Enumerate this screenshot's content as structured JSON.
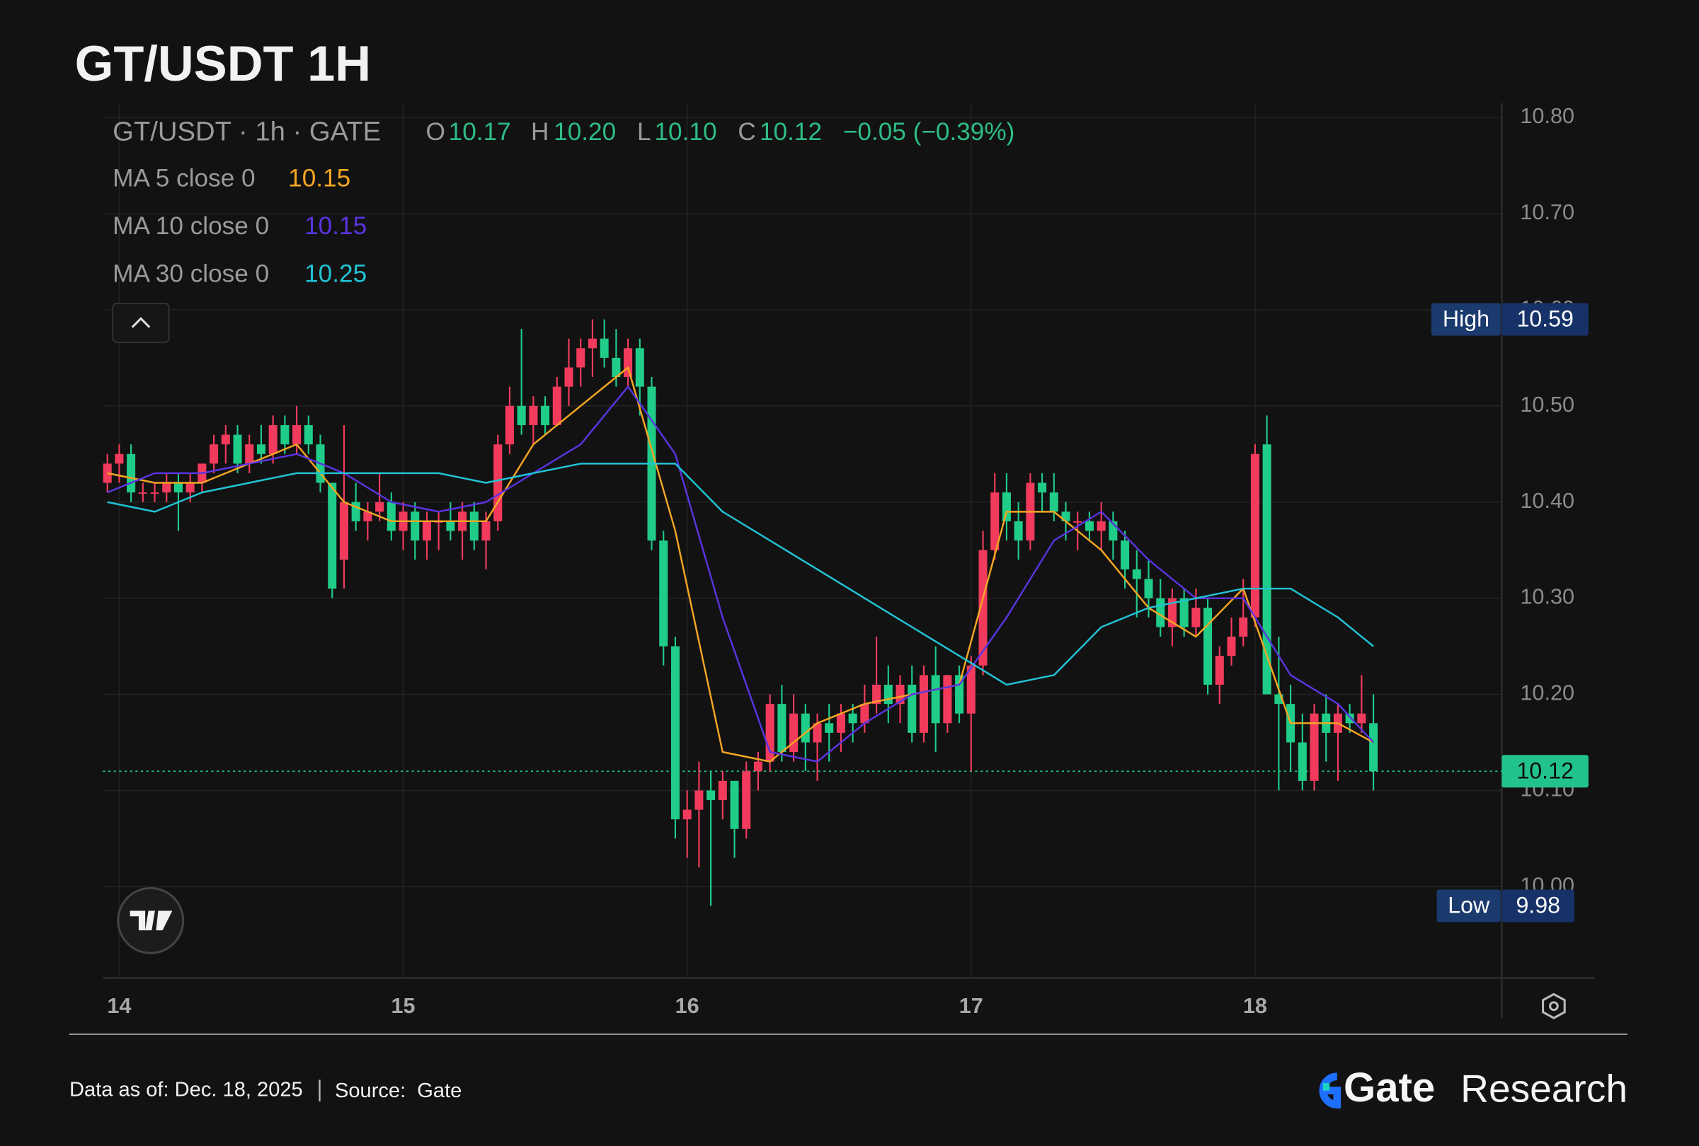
{
  "chart_data": {
    "type": "candlestick",
    "title": "GT/USDT 1H",
    "symbol": "GT/USDT · 1h · GATE",
    "ohlc_legend": [
      {
        "key": "O",
        "value": "10.17"
      },
      {
        "key": "H",
        "value": "10.20"
      },
      {
        "key": "L",
        "value": "10.10"
      },
      {
        "key": "C",
        "value": "10.12"
      }
    ],
    "change": "−0.05 (−0.39%)",
    "up_color": "#f23b5c",
    "down_color": "#1fcc88",
    "x": [
      -1,
      0,
      1,
      2,
      3,
      4,
      5,
      6,
      7,
      8,
      9,
      10,
      11,
      12,
      13,
      14,
      15,
      16,
      17,
      18,
      19,
      20,
      21,
      22,
      23,
      24,
      25,
      26,
      27,
      28,
      29,
      30,
      31,
      32,
      33,
      34,
      35,
      36,
      37,
      38,
      39,
      40,
      41,
      42,
      43,
      44,
      45,
      46,
      47,
      48,
      49,
      50,
      51,
      52,
      53,
      54,
      55,
      56,
      57,
      58,
      59,
      60,
      61,
      62,
      63,
      64,
      65,
      66,
      67,
      68,
      69,
      70,
      71,
      72,
      73,
      74,
      75,
      76,
      77,
      78,
      79,
      80,
      81,
      82,
      83,
      84,
      85,
      86,
      87,
      88,
      89,
      90,
      91,
      92,
      93,
      94,
      95,
      96,
      97,
      98,
      99,
      100,
      101,
      102,
      103,
      104,
      105,
      106
    ],
    "open": [
      10.42,
      10.44,
      10.45,
      10.41,
      10.41,
      10.41,
      10.42,
      10.41,
      10.42,
      10.44,
      10.46,
      10.47,
      10.44,
      10.46,
      10.45,
      10.48,
      10.46,
      10.48,
      10.46,
      10.42,
      10.34,
      10.4,
      10.38,
      10.39,
      10.4,
      10.37,
      10.39,
      10.36,
      10.38,
      10.38,
      10.37,
      10.39,
      10.36,
      10.38,
      10.46,
      10.5,
      10.48,
      10.5,
      10.48,
      10.52,
      10.54,
      10.56,
      10.57,
      10.55,
      10.53,
      10.56,
      10.52,
      10.36,
      10.25,
      10.07,
      10.08,
      10.1,
      10.09,
      10.11,
      10.06,
      10.12,
      10.13,
      10.19,
      10.14,
      10.18,
      10.15,
      10.17,
      10.16,
      10.18,
      10.17,
      10.19,
      10.21,
      10.19,
      10.21,
      10.16,
      10.22,
      10.17,
      10.22,
      10.18,
      10.23,
      10.35,
      10.41,
      10.38,
      10.36,
      10.42,
      10.41,
      10.39,
      10.38,
      10.38,
      10.37,
      10.38,
      10.36,
      10.33,
      10.32,
      10.3,
      10.27,
      10.3,
      10.27,
      10.29,
      10.21,
      10.24,
      10.26,
      10.28,
      10.46,
      10.2,
      10.19,
      10.15,
      10.11,
      10.18,
      10.16,
      10.18,
      10.17,
      10.17
    ],
    "high": [
      10.45,
      10.46,
      10.46,
      10.42,
      10.42,
      10.43,
      10.43,
      10.43,
      10.44,
      10.47,
      10.48,
      10.48,
      10.47,
      10.48,
      10.49,
      10.49,
      10.5,
      10.49,
      10.47,
      10.42,
      10.48,
      10.42,
      10.4,
      10.43,
      10.41,
      10.4,
      10.4,
      10.39,
      10.39,
      10.4,
      10.4,
      10.4,
      10.39,
      10.47,
      10.52,
      10.58,
      10.51,
      10.51,
      10.53,
      10.57,
      10.57,
      10.59,
      10.59,
      10.58,
      10.57,
      10.57,
      10.53,
      10.37,
      10.26,
      10.1,
      10.13,
      10.12,
      10.12,
      10.11,
      10.13,
      10.14,
      10.2,
      10.21,
      10.2,
      10.19,
      10.18,
      10.19,
      10.19,
      10.19,
      10.21,
      10.26,
      10.23,
      10.22,
      10.23,
      10.23,
      10.25,
      10.22,
      10.23,
      10.24,
      10.37,
      10.43,
      10.43,
      10.4,
      10.43,
      10.43,
      10.43,
      10.4,
      10.39,
      10.39,
      10.4,
      10.39,
      10.37,
      10.35,
      10.34,
      10.32,
      10.31,
      10.31,
      10.31,
      10.3,
      10.25,
      10.28,
      10.32,
      10.46,
      10.49,
      10.26,
      10.21,
      10.18,
      10.19,
      10.2,
      10.19,
      10.19,
      10.22,
      10.2
    ],
    "low": [
      10.41,
      10.42,
      10.4,
      10.4,
      10.4,
      10.4,
      10.37,
      10.4,
      10.41,
      10.43,
      10.44,
      10.43,
      10.43,
      10.44,
      10.44,
      10.45,
      10.45,
      10.45,
      10.41,
      10.3,
      10.31,
      10.37,
      10.36,
      10.38,
      10.36,
      10.35,
      10.34,
      10.34,
      10.35,
      10.36,
      10.34,
      10.35,
      10.33,
      10.37,
      10.45,
      10.47,
      10.46,
      10.47,
      10.48,
      10.5,
      10.52,
      10.53,
      10.54,
      10.52,
      10.52,
      10.49,
      10.35,
      10.23,
      10.05,
      10.03,
      10.02,
      9.98,
      10.07,
      10.03,
      10.05,
      10.1,
      10.12,
      10.13,
      10.13,
      10.12,
      10.11,
      10.13,
      10.14,
      10.15,
      10.16,
      10.18,
      10.17,
      10.17,
      10.15,
      10.15,
      10.14,
      10.16,
      10.17,
      10.12,
      10.22,
      10.34,
      10.36,
      10.34,
      10.35,
      10.39,
      10.38,
      10.36,
      10.35,
      10.36,
      10.35,
      10.34,
      10.31,
      10.28,
      10.28,
      10.26,
      10.25,
      10.26,
      10.26,
      10.2,
      10.19,
      10.23,
      10.25,
      10.27,
      10.2,
      10.1,
      10.12,
      10.1,
      10.1,
      10.13,
      10.11,
      10.16,
      10.16,
      10.1
    ],
    "close": [
      10.44,
      10.45,
      10.41,
      10.41,
      10.41,
      10.42,
      10.41,
      10.42,
      10.44,
      10.46,
      10.47,
      10.44,
      10.46,
      10.45,
      10.48,
      10.46,
      10.48,
      10.46,
      10.42,
      10.31,
      10.4,
      10.38,
      10.39,
      10.4,
      10.37,
      10.39,
      10.36,
      10.38,
      10.38,
      10.37,
      10.39,
      10.36,
      10.38,
      10.46,
      10.5,
      10.48,
      10.5,
      10.48,
      10.52,
      10.54,
      10.56,
      10.57,
      10.55,
      10.53,
      10.56,
      10.52,
      10.36,
      10.25,
      10.07,
      10.08,
      10.1,
      10.09,
      10.11,
      10.06,
      10.12,
      10.13,
      10.19,
      10.14,
      10.18,
      10.15,
      10.17,
      10.16,
      10.18,
      10.17,
      10.19,
      10.21,
      10.19,
      10.21,
      10.16,
      10.22,
      10.17,
      10.22,
      10.18,
      10.23,
      10.35,
      10.41,
      10.38,
      10.36,
      10.42,
      10.41,
      10.39,
      10.38,
      10.38,
      10.37,
      10.38,
      10.36,
      10.33,
      10.32,
      10.3,
      10.27,
      10.3,
      10.27,
      10.29,
      10.21,
      10.24,
      10.26,
      10.28,
      10.45,
      10.2,
      10.19,
      10.15,
      10.11,
      10.18,
      10.16,
      10.18,
      10.17,
      10.18,
      10.12
    ],
    "ma_x": [
      -1,
      3,
      7,
      11,
      15,
      19,
      23,
      27,
      31,
      35,
      39,
      43,
      47,
      51,
      55,
      59,
      63,
      67,
      71,
      75,
      79,
      83,
      87,
      91,
      95,
      99,
      103,
      106
    ],
    "ma": [
      {
        "name": "MA 5 close 0",
        "legend_value": "10.15",
        "color": "#f5a623",
        "values": [
          10.43,
          10.42,
          10.42,
          10.44,
          10.46,
          10.4,
          10.38,
          10.38,
          10.38,
          10.46,
          10.5,
          10.54,
          10.37,
          10.14,
          10.13,
          10.17,
          10.19,
          10.2,
          10.21,
          10.39,
          10.39,
          10.35,
          10.29,
          10.26,
          10.31,
          10.17,
          10.17,
          10.15
        ]
      },
      {
        "name": "MA 10 close 0",
        "legend_value": "10.15",
        "color": "#5a34e0",
        "values": [
          10.41,
          10.43,
          10.43,
          10.44,
          10.45,
          10.43,
          10.4,
          10.39,
          10.4,
          10.43,
          10.46,
          10.52,
          10.45,
          10.28,
          10.14,
          10.13,
          10.17,
          10.2,
          10.21,
          10.28,
          10.36,
          10.39,
          10.34,
          10.3,
          10.3,
          10.22,
          10.19,
          10.15
        ]
      },
      {
        "name": "MA 30 close 0",
        "legend_value": "10.25",
        "color": "#22c3d6",
        "values": [
          10.4,
          10.39,
          10.41,
          10.42,
          10.43,
          10.43,
          10.43,
          10.43,
          10.42,
          10.43,
          10.44,
          10.44,
          10.44,
          10.39,
          10.36,
          10.33,
          10.3,
          10.27,
          10.24,
          10.21,
          10.22,
          10.27,
          10.29,
          10.3,
          10.31,
          10.31,
          10.28,
          10.25
        ]
      }
    ],
    "high_mark": {
      "label": "High",
      "value": 10.59
    },
    "low_mark": {
      "label": "Low",
      "value": 9.98
    },
    "last_price": 10.12,
    "xlim": [
      -1.375,
      116.85
    ],
    "xticks": [
      {
        "value": 0,
        "label": "14"
      },
      {
        "value": 24,
        "label": "15"
      },
      {
        "value": 48,
        "label": "16"
      },
      {
        "value": 72,
        "label": "17"
      },
      {
        "value": 96,
        "label": "18"
      }
    ],
    "ylim": [
      9.905,
      10.815
    ],
    "yticks": [
      {
        "value": 10.0,
        "label": "10.00"
      },
      {
        "value": 10.1,
        "label": "10.10"
      },
      {
        "value": 10.2,
        "label": "10.20"
      },
      {
        "value": 10.3,
        "label": "10.30"
      },
      {
        "value": 10.4,
        "label": "10.40"
      },
      {
        "value": 10.5,
        "label": "10.50"
      },
      {
        "value": 10.6,
        "label": "10.60"
      },
      {
        "value": 10.7,
        "label": "10.70"
      },
      {
        "value": 10.8,
        "label": "10.80"
      }
    ],
    "grid": true
  },
  "footer": {
    "date": "Data as of: Dec. 18, 2025",
    "source_label": "Source:",
    "source": "Gate",
    "brand": "Gate",
    "brand_suffix": "Research"
  }
}
